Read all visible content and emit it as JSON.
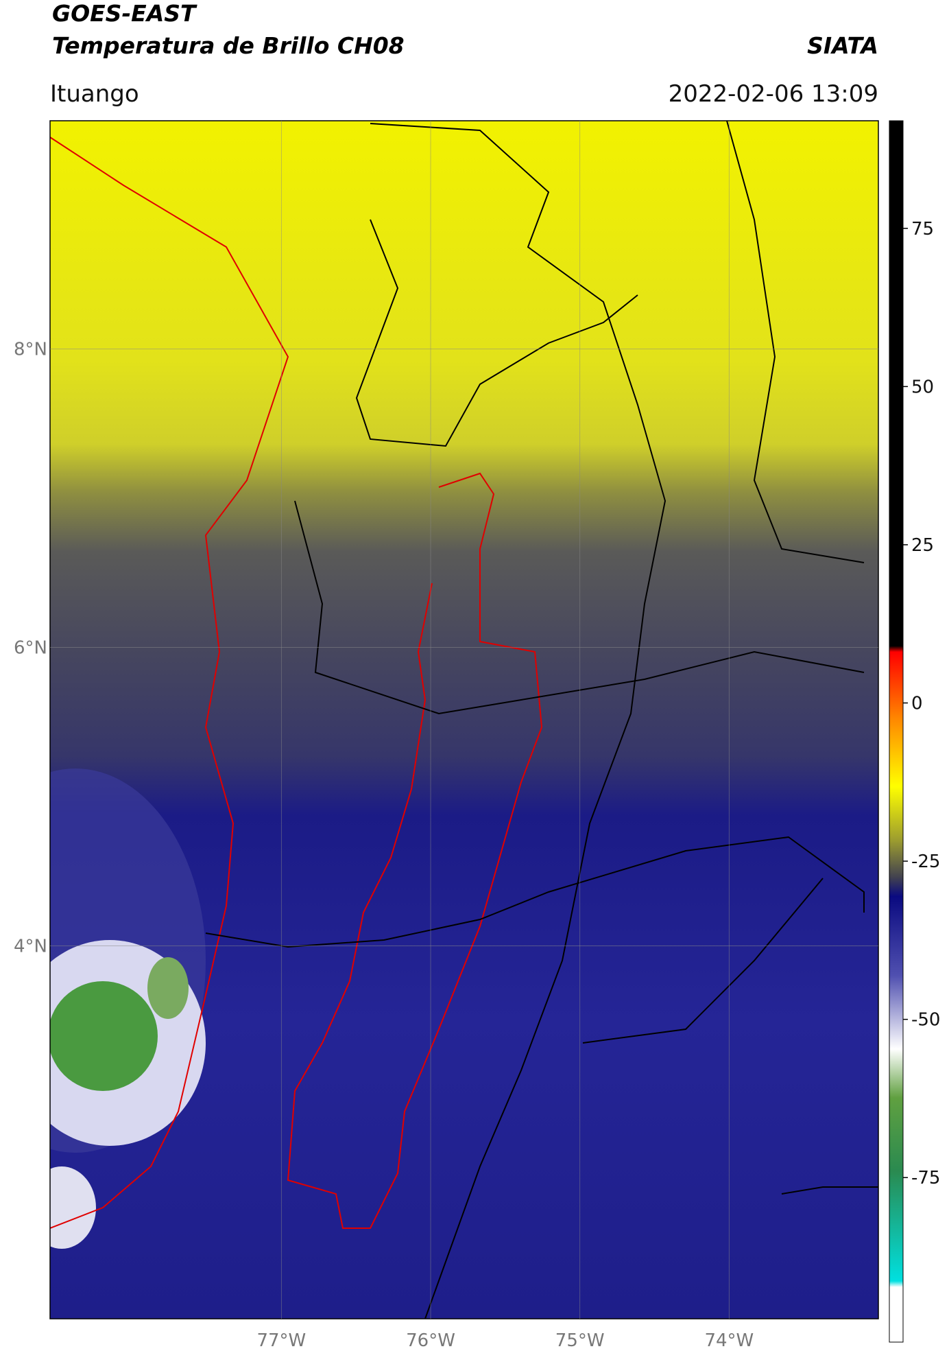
{
  "header": {
    "title": "GOES-EAST",
    "subtitle": "Temperatura de Brillo CH08",
    "source": "SIATA",
    "location": "Ituango",
    "datetime": "2022-02-06 13:09"
  },
  "map": {
    "xlim": [
      -78.55,
      -73.0
    ],
    "ylim": [
      1.5,
      9.53
    ],
    "xticks": [
      {
        "value": -77,
        "label": "77°W"
      },
      {
        "value": -76,
        "label": "76°W"
      },
      {
        "value": -75,
        "label": "75°W"
      },
      {
        "value": -74,
        "label": "74°W"
      }
    ],
    "yticks": [
      {
        "value": 8,
        "label": "8°N"
      },
      {
        "value": 6,
        "label": "6°N"
      },
      {
        "value": 4,
        "label": "4°N"
      }
    ]
  },
  "colorbar": {
    "lim": [
      -101,
      92
    ],
    "ticks": [
      75,
      50,
      25,
      0,
      -25,
      -50,
      -75
    ]
  }
}
